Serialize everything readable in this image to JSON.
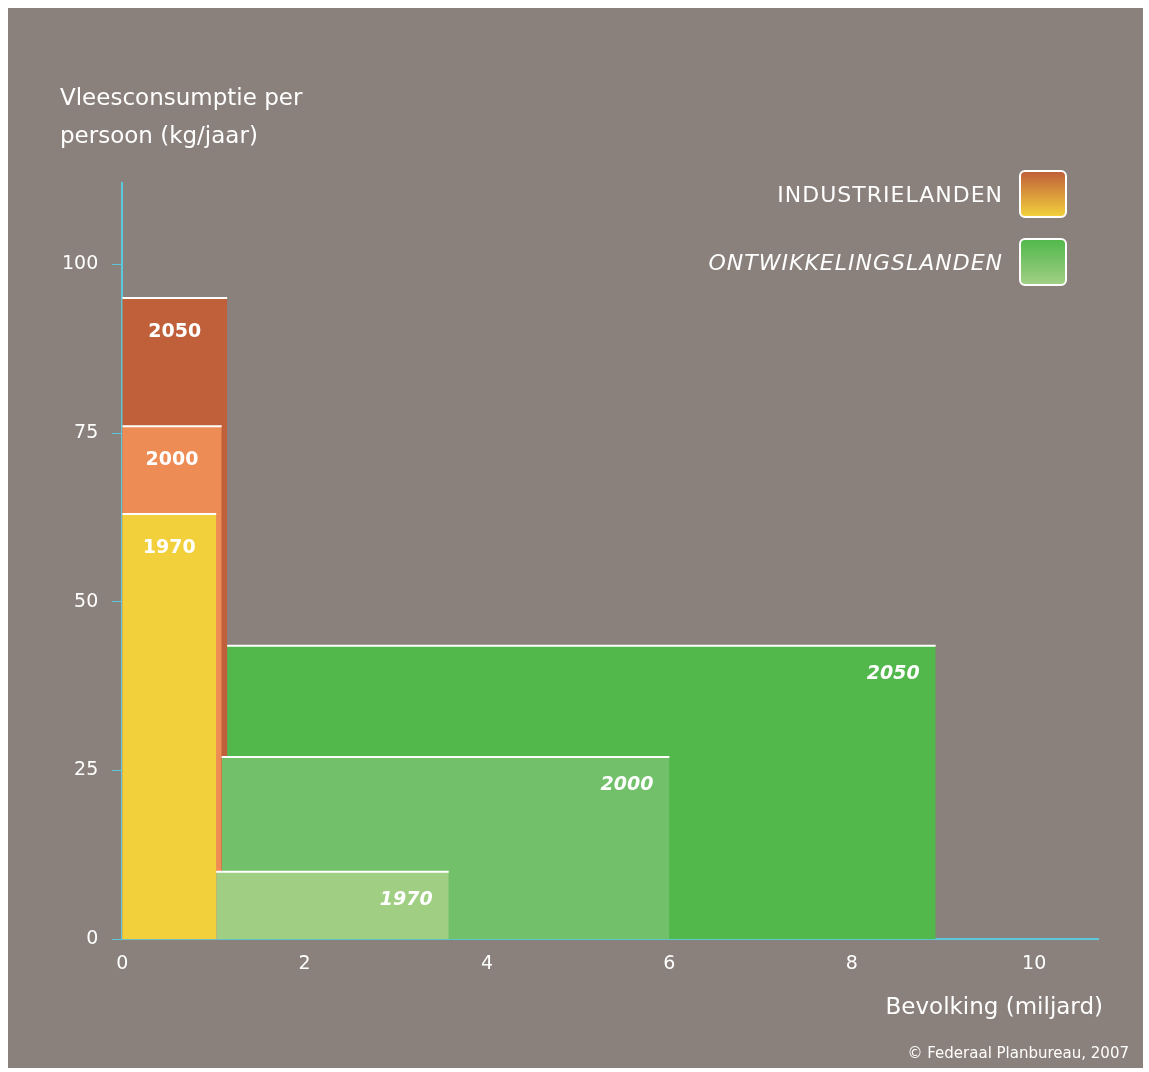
{
  "chart_data": {
    "type": "area",
    "ylabel": "Vleesconsumptie per persoon (kg/jaar)",
    "xlabel": "Bevolking (miljard)",
    "xlim": [
      0,
      10.7
    ],
    "xticks": [
      0,
      2,
      4,
      6,
      8,
      10
    ],
    "ylim": [
      0,
      112
    ],
    "yticks": [
      0,
      25,
      50,
      75,
      100
    ],
    "grid": false,
    "annotations": [
      "INDUSTRIELANDEN",
      "ONTWIKKELINGSLANDEN",
      "© Federaal Planbureau, 2007"
    ],
    "series": [
      {
        "name": "2050",
        "color": "#c0603a",
        "x": [
          0,
          1.15
        ],
        "values": [
          95,
          95
        ]
      },
      {
        "name": "2000",
        "color": "#ee8c55",
        "x": [
          0,
          1.09
        ],
        "values": [
          76,
          76
        ]
      },
      {
        "name": "1970",
        "color": "#f2d03c",
        "x": [
          0,
          1.03
        ],
        "values": [
          63,
          63
        ]
      },
      {
        "name": "2050",
        "color": "#52b84c",
        "x": [
          1.15,
          8.92
        ],
        "values": [
          43.5,
          43.5
        ]
      },
      {
        "name": "2000",
        "color": "#72c06a",
        "x": [
          1.09,
          6.0
        ],
        "values": [
          27,
          27
        ]
      },
      {
        "name": "1970",
        "color": "#a0cf84",
        "x": [
          1.03,
          3.58
        ],
        "values": [
          10,
          10
        ]
      }
    ]
  }
}
